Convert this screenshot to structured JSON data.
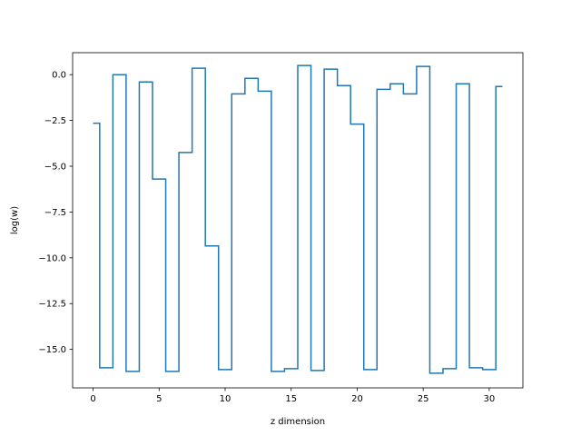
{
  "chart_data": {
    "type": "line",
    "drawstyle": "steps-mid",
    "title": "",
    "xlabel": "z dimension",
    "ylabel": "log(w)",
    "xlim": [
      -1.55,
      32.55
    ],
    "ylim": [
      -17.1,
      1.2
    ],
    "xticks": [
      0,
      5,
      10,
      15,
      20,
      25,
      30
    ],
    "yticks": [
      0.0,
      -2.5,
      -5.0,
      -7.5,
      -10.0,
      -12.5,
      -15.0
    ],
    "xtick_labels": [
      "0",
      "5",
      "10",
      "15",
      "20",
      "25",
      "30"
    ],
    "ytick_labels": [
      "0.0",
      "−2.5",
      "−5.0",
      "−7.5",
      "−10.0",
      "−12.5",
      "−15.0"
    ],
    "grid": false,
    "line_color": "#1f77b4",
    "series": [
      {
        "x": [
          0,
          1,
          2,
          3,
          4,
          5,
          6,
          7,
          8,
          9,
          10,
          11,
          12,
          13,
          14,
          15,
          16,
          17,
          18,
          19,
          20,
          21,
          22,
          23,
          24,
          25,
          26,
          27,
          28,
          29,
          30,
          31
        ],
        "values": [
          -2.65,
          -16.0,
          0.0,
          -16.2,
          -0.4,
          -5.7,
          -16.2,
          -4.25,
          0.35,
          -9.35,
          -16.1,
          -1.05,
          -0.2,
          -0.9,
          -16.2,
          -16.05,
          0.5,
          -16.15,
          0.3,
          -0.6,
          -2.7,
          -16.1,
          -0.8,
          -0.5,
          -1.05,
          0.45,
          -16.3,
          -16.05,
          -0.5,
          -16.0,
          -16.1,
          -0.65
        ]
      }
    ]
  }
}
